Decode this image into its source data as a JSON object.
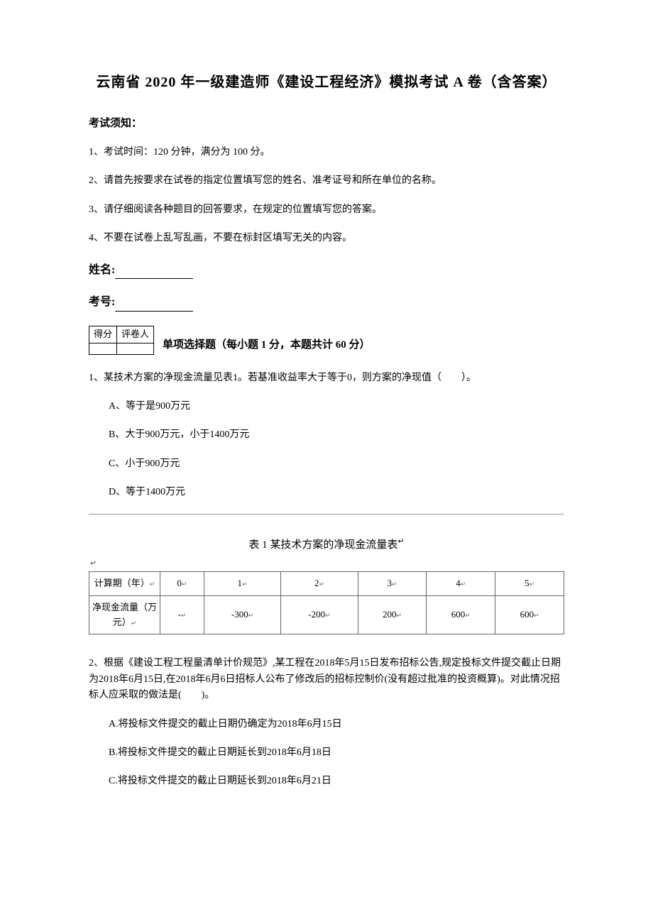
{
  "title": "云南省 2020 年一级建造师《建设工程经济》模拟考试 A 卷（含答案）",
  "instructions": {
    "header": "考试须知：",
    "items": [
      "1、考试时间：120 分钟，满分为 100 分。",
      "2、请首先按要求在试卷的指定位置填写您的姓名、准考证号和所在单位的名称。",
      "3、请仔细阅读各种题目的回答要求，在规定的位置填写您的答案。",
      "4、不要在试卷上乱写乱画，不要在标封区填写无关的内容。"
    ]
  },
  "fields": {
    "name_label": "姓名:",
    "id_label": "考号:"
  },
  "score_table": {
    "headers": [
      "得分",
      "评卷人"
    ]
  },
  "section1": {
    "title": "单项选择题（每小题 1 分，本题共计 60 分）"
  },
  "q1": {
    "stem": "1、某技术方案的净现金流量见表1。若基准收益率大于等于0，则方案的净现值（　　）。",
    "options": {
      "A": "A、等于是900万元",
      "B": "B、大于900万元，小于1400万元",
      "C": "C、小于900万元",
      "D": "D、等于1400万元"
    }
  },
  "cashflow_table": {
    "caption": "表 1  某技术方案的净现金流量表",
    "row1_label": "计算期（年）",
    "row2_label": "净现金流量（万元）",
    "years": [
      "0",
      "1",
      "2",
      "3",
      "4",
      "5"
    ],
    "values": [
      "-",
      "-300",
      "-200",
      "200",
      "600",
      "600"
    ],
    "cr_mark": "↵",
    "col_width_head": 100,
    "col_width_data": 95,
    "border_color": "#666666",
    "font_size": 13
  },
  "q2": {
    "stem": "2、根据《建设工程工程量清单计价规范》,某工程在2018年5月15日发布招标公告,规定投标文件提交截止日期为2018年6月15日,在2018年6月6日招标人公布了修改后的招标控制价(没有超过批准的投资概算)。对此情况招标人应采取的做法是(　　)。",
    "options": {
      "A": "A.将投标文件提交的截止日期仍确定为2018年6月15日",
      "B": "B.将投标文件提交的截止日期延长到2018年6月18日",
      "C": "C.将投标文件提交的截止日期延长到2018年6月21日"
    }
  }
}
